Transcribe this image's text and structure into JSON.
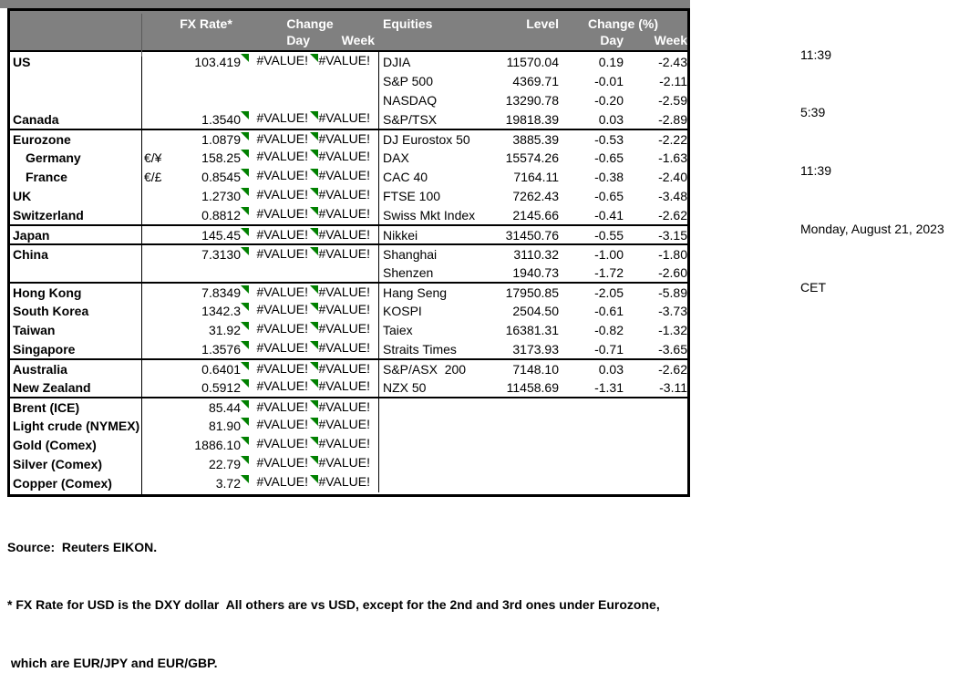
{
  "colors": {
    "header_bg": "#808080",
    "header_text": "#ffffff",
    "error_triangle": "#008000",
    "border": "#000000"
  },
  "error_value": "#VALUE!",
  "header": {
    "fx_rate": "FX Rate*",
    "change": "Change",
    "day": "Day",
    "week": "Week",
    "equities": "Equities",
    "level": "Level",
    "change_pct": "Change (%)"
  },
  "rows": [
    {
      "sep": false,
      "fx": {
        "name": "US",
        "pair": "",
        "rate": "103.419"
      },
      "eq": {
        "name": "DJIA",
        "level": "11570.04",
        "day": "0.19",
        "week": "-2.43"
      }
    },
    {
      "sep": false,
      "fx": {
        "blank": true
      },
      "eq": {
        "name": "S&P 500",
        "level": "4369.71",
        "day": "-0.01",
        "week": "-2.11"
      }
    },
    {
      "sep": false,
      "fx": {
        "blank": true
      },
      "eq": {
        "name": "NASDAQ",
        "level": "13290.78",
        "day": "-0.20",
        "week": "-2.59"
      }
    },
    {
      "sep": false,
      "fx": {
        "name": "Canada",
        "pair": "",
        "rate": "1.3540"
      },
      "eq": {
        "name": "S&P/TSX",
        "level": "19818.39",
        "day": "0.03",
        "week": "-2.89"
      }
    },
    {
      "sep": true,
      "fx": {
        "name": "Eurozone",
        "pair": "",
        "rate": "1.0879"
      },
      "eq": {
        "name": "DJ Eurostox 50",
        "level": "3885.39",
        "day": "-0.53",
        "week": "-2.22"
      }
    },
    {
      "sep": false,
      "fx": {
        "name": "Germany",
        "indent": true,
        "pair": "€/¥",
        "rate": "158.25"
      },
      "eq": {
        "name": "DAX",
        "level": "15574.26",
        "day": "-0.65",
        "week": "-1.63"
      }
    },
    {
      "sep": false,
      "fx": {
        "name": "France",
        "indent": true,
        "pair": "€/£",
        "rate": "0.8545"
      },
      "eq": {
        "name": "CAC 40",
        "level": "7164.11",
        "day": "-0.38",
        "week": "-2.40"
      }
    },
    {
      "sep": false,
      "fx": {
        "name": "UK",
        "pair": "",
        "rate": "1.2730"
      },
      "eq": {
        "name": "FTSE 100",
        "level": "7262.43",
        "day": "-0.65",
        "week": "-3.48"
      }
    },
    {
      "sep": false,
      "fx": {
        "name": "Switzerland",
        "pair": "",
        "rate": "0.8812"
      },
      "eq": {
        "name": "Swiss Mkt Index",
        "level": "2145.66",
        "day": "-0.41",
        "week": "-2.62"
      }
    },
    {
      "sep": true,
      "fx": {
        "name": "Japan",
        "pair": "",
        "rate": "145.45"
      },
      "eq": {
        "name": "Nikkei",
        "level": "31450.76",
        "day": "-0.55",
        "week": "-3.15"
      }
    },
    {
      "sep": true,
      "fx": {
        "name": "China",
        "pair": "",
        "rate": "7.3130"
      },
      "eq": {
        "name": "Shanghai",
        "level": "3110.32",
        "day": "-1.00",
        "week": "-1.80"
      }
    },
    {
      "sep": false,
      "fx": {
        "blank": true
      },
      "eq": {
        "name": "Shenzen",
        "level": "1940.73",
        "day": "-1.72",
        "week": "-2.60"
      }
    },
    {
      "sep": true,
      "fx": {
        "name": "Hong Kong",
        "pair": "",
        "rate": "7.8349"
      },
      "eq": {
        "name": "Hang Seng",
        "level": "17950.85",
        "day": "-2.05",
        "week": "-5.89"
      }
    },
    {
      "sep": false,
      "fx": {
        "name": "South Korea",
        "pair": "",
        "rate": "1342.3"
      },
      "eq": {
        "name": "KOSPI",
        "level": "2504.50",
        "day": "-0.61",
        "week": "-3.73"
      }
    },
    {
      "sep": false,
      "fx": {
        "name": "Taiwan",
        "pair": "",
        "rate": "31.92"
      },
      "eq": {
        "name": "Taiex",
        "level": "16381.31",
        "day": "-0.82",
        "week": "-1.32"
      }
    },
    {
      "sep": false,
      "fx": {
        "name": "Singapore",
        "pair": "",
        "rate": "1.3576"
      },
      "eq": {
        "name": "Straits Times",
        "level": "3173.93",
        "day": "-0.71",
        "week": "-3.65"
      }
    },
    {
      "sep": true,
      "fx": {
        "name": "Australia",
        "pair": "",
        "rate": "0.6401"
      },
      "eq": {
        "name": "S&P/ASX  200",
        "level": "7148.10",
        "day": "0.03",
        "week": "-2.62"
      }
    },
    {
      "sep": false,
      "fx": {
        "name": "New Zealand",
        "pair": "",
        "rate": "0.5912"
      },
      "eq": {
        "name": "NZX 50",
        "level": "11458.69",
        "day": "-1.31",
        "week": "-3.11"
      }
    },
    {
      "sep": true,
      "fx": {
        "name": "Brent (ICE)",
        "pair": "",
        "rate": "85.44"
      },
      "eq": {
        "blank": true
      }
    },
    {
      "sep": false,
      "fx": {
        "name": "Light crude (NYMEX)",
        "pair": "",
        "rate": "81.90"
      },
      "eq": {
        "blank": true
      }
    },
    {
      "sep": false,
      "fx": {
        "name": "Gold (Comex)",
        "pair": "",
        "rate": "1886.10"
      },
      "eq": {
        "blank": true
      }
    },
    {
      "sep": false,
      "fx": {
        "name": "Silver (Comex)",
        "pair": "",
        "rate": "22.79"
      },
      "eq": {
        "blank": true
      }
    },
    {
      "sep": false,
      "fx": {
        "name": "Copper (Comex)",
        "pair": "",
        "rate": "3.72"
      },
      "eq": {
        "blank": true
      }
    }
  ],
  "timestamps": [
    "11:39",
    "5:39",
    "11:39",
    "Monday, August 21, 2023",
    "CET"
  ],
  "footer": {
    "source": "Source:  Reuters EIKON.",
    "note1": "* FX Rate for USD is the DXY dollar  All others are vs USD, except for the 2nd and 3rd ones under Eurozone,",
    "note2": " which are EUR/JPY and EUR/GBP."
  }
}
